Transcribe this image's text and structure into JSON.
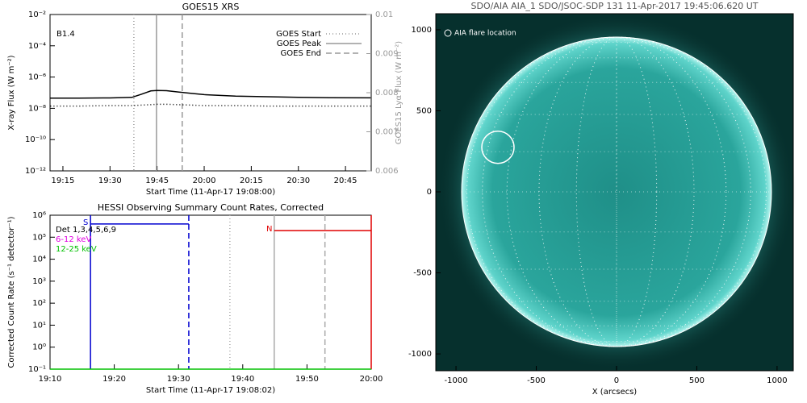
{
  "chart_data": [
    {
      "type": "line",
      "title": "GOES15 XRS",
      "x_label": "Start Time (11-Apr-17 19:08:00)",
      "y_label": "X-ray Flux (W m⁻²)",
      "y2_label": "GOES15 Lyα Flux (W m⁻²)",
      "annotation": "B1.4",
      "ylog": true,
      "xlim": [
        1150.9,
        1253.2
      ],
      "ylim": [
        1e-12,
        0.01
      ],
      "y2lim": [
        0.006,
        0.01
      ],
      "xticks": [
        {
          "value": 1155,
          "label": "19:15"
        },
        {
          "value": 1170,
          "label": "19:30"
        },
        {
          "value": 1185,
          "label": "19:45"
        },
        {
          "value": 1200,
          "label": "20:00"
        },
        {
          "value": 1215,
          "label": "20:15"
        },
        {
          "value": 1230,
          "label": "20:30"
        },
        {
          "value": 1245,
          "label": "20:45"
        }
      ],
      "yticks": [
        {
          "value": 1e-12,
          "label": "10⁻¹²"
        },
        {
          "value": 1e-10,
          "label": "10⁻¹⁰"
        },
        {
          "value": 1e-08,
          "label": "10⁻⁸"
        },
        {
          "value": 1e-06,
          "label": "10⁻⁶"
        },
        {
          "value": 0.0001,
          "label": "10⁻⁴"
        },
        {
          "value": 0.01,
          "label": "10⁻²"
        }
      ],
      "y2ticks": [
        0.006,
        0.007,
        0.008,
        0.009,
        0.01
      ],
      "series": [
        {
          "color": "#000000",
          "style": "solid",
          "x": [
            1151,
            1160,
            1170,
            1177,
            1180,
            1183,
            1185,
            1188,
            1192,
            1196,
            1200,
            1210,
            1220,
            1230,
            1240,
            1253
          ],
          "values": [
            4.5e-08,
            4.5e-08,
            4.6e-08,
            5e-08,
            8e-08,
            1.3e-07,
            1.4e-07,
            1.35e-07,
            1.1e-07,
            9e-08,
            7.5e-08,
            6e-08,
            5.5e-08,
            5e-08,
            4.8e-08,
            4.7e-08
          ]
        },
        {
          "color": "#000000",
          "style": "dotted",
          "x": [
            1151,
            1160,
            1170,
            1177,
            1180,
            1183,
            1185,
            1188,
            1192,
            1196,
            1200,
            1210,
            1220,
            1230,
            1240,
            1253
          ],
          "values": [
            1.4e-08,
            1.4e-08,
            1.5e-08,
            1.5e-08,
            1.6e-08,
            1.7e-08,
            1.8e-08,
            1.8e-08,
            1.7e-08,
            1.6e-08,
            1.5e-08,
            1.5e-08,
            1.4e-08,
            1.4e-08,
            1.4e-08,
            1.4e-08
          ]
        }
      ],
      "markers": [
        {
          "label": "GOES Start",
          "x": 1177.6,
          "style": "dotted",
          "color": "#999999"
        },
        {
          "label": "GOES Peak",
          "x": 1184.8,
          "style": "solid",
          "color": "#999999"
        },
        {
          "label": "GOES End",
          "x": 1193,
          "style": "dashed",
          "color": "#999999"
        }
      ]
    },
    {
      "type": "line",
      "title": "HESSI Observing Summary Count Rates, Corrected",
      "x_label": "Start Time (11-Apr-17 19:08:02)",
      "y_label": "Corrected Count Rate (s⁻¹ detector⁻¹)",
      "ylog": true,
      "xlim": [
        1150,
        1200
      ],
      "ylim": [
        0.1,
        1000000
      ],
      "xticks": [
        {
          "value": 1150,
          "label": "19:10"
        },
        {
          "value": 1160,
          "label": "19:20"
        },
        {
          "value": 1170,
          "label": "19:30"
        },
        {
          "value": 1180,
          "label": "19:40"
        },
        {
          "value": 1190,
          "label": "19:50"
        },
        {
          "value": 1200,
          "label": "20:00"
        }
      ],
      "yticks": [
        {
          "value": 0.1,
          "label": "10⁻¹"
        },
        {
          "value": 1,
          "label": "10⁰"
        },
        {
          "value": 10,
          "label": "10¹"
        },
        {
          "value": 100,
          "label": "10²"
        },
        {
          "value": 1000,
          "label": "10³"
        },
        {
          "value": 10000,
          "label": "10⁴"
        },
        {
          "value": 100000,
          "label": "10⁵"
        },
        {
          "value": 1000000,
          "label": "10⁶"
        }
      ],
      "legend_texts": [
        {
          "text": "Det 1,3,4,5,6,9",
          "color": "#000000"
        },
        {
          "text": "6-12 keV",
          "color": "#e000e0"
        },
        {
          "text": "12-25 keV",
          "color": "#00c000"
        }
      ],
      "series": [
        {
          "color": "#00c000",
          "style": "solid",
          "x": [
            1150,
            1200
          ],
          "values": [
            0.1,
            0.1
          ]
        },
        {
          "color": "#0000d0",
          "style": "solid",
          "x": [
            1156.3,
            1171.6
          ],
          "values": [
            400000,
            400000
          ]
        },
        {
          "color": "#e00000",
          "style": "solid",
          "x": [
            1184.9,
            1200
          ],
          "values": [
            200000,
            200000
          ]
        }
      ],
      "markers": [
        {
          "x": 1156.3,
          "style": "solid",
          "color": "#0000d0"
        },
        {
          "x": 1171.6,
          "style": "dashed",
          "color": "#0000d0"
        },
        {
          "x": 1178,
          "style": "dotted",
          "color": "#aaaaaa"
        },
        {
          "x": 1184.9,
          "style": "solid",
          "color": "#aaaaaa"
        },
        {
          "x": 1192.8,
          "style": "dashed",
          "color": "#aaaaaa"
        },
        {
          "x": 1200,
          "style": "solid",
          "color": "#e00000"
        }
      ],
      "annotations": [
        {
          "text": "S",
          "x": 1156.3,
          "y": 400000,
          "color": "#0000d0"
        },
        {
          "text": "N",
          "x": 1184.9,
          "y": 200000,
          "color": "#e00000"
        }
      ]
    },
    {
      "type": "image",
      "title": "SDO/AIA AIA_1 SDO/JSOC-SDP 131 11-Apr-2017 19:45:06.620 UT",
      "x_label": "X (arcsecs)",
      "xlim": [
        -1126,
        1101
      ],
      "ylim": [
        -1104,
        1099
      ],
      "xticks": [
        -1000,
        -500,
        0,
        500,
        1000
      ],
      "yticks": [
        -1000,
        -500,
        0,
        500,
        1000
      ],
      "flare": {
        "label": "AIA flare location",
        "x": -739,
        "y": 275
      }
    }
  ]
}
